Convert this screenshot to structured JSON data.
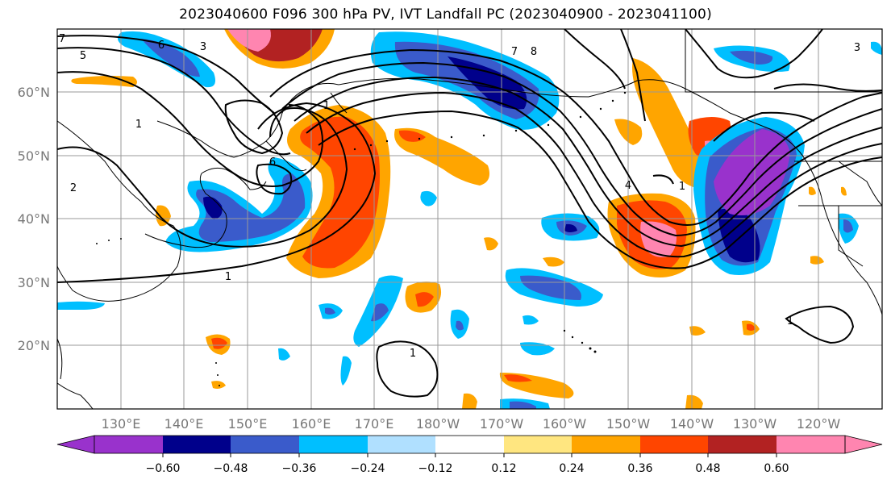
{
  "title": "2023040600 F096 300 hPa PV, IVT Landfall PC (2023040900 - 2023041100)",
  "map": {
    "lat_ticks": [
      "60°N",
      "50°N",
      "40°N",
      "30°N",
      "20°N"
    ],
    "lon_ticks": [
      "130°E",
      "140°E",
      "150°E",
      "160°E",
      "170°E",
      "180°W",
      "170°W",
      "160°W",
      "150°W",
      "140°W",
      "130°W",
      "120°W"
    ],
    "contour_labels": [
      "5",
      "6",
      "3",
      "1",
      "6",
      "7",
      "8",
      "3",
      "1",
      "2",
      "7",
      "4",
      "1",
      "1",
      "1",
      "1"
    ]
  },
  "colorbar": {
    "tick_labels": [
      "−0.60",
      "−0.48",
      "−0.36",
      "−0.24",
      "−0.12",
      "0.12",
      "0.24",
      "0.36",
      "0.48",
      "0.60"
    ],
    "colors": [
      "#9932CC",
      "#00008B",
      "#3A5BCB",
      "#00BFFF",
      "#B0E0FF",
      "#FFFFFF",
      "#FFE680",
      "#FFA500",
      "#FF4500",
      "#B22222",
      "#FF85B0"
    ]
  }
}
